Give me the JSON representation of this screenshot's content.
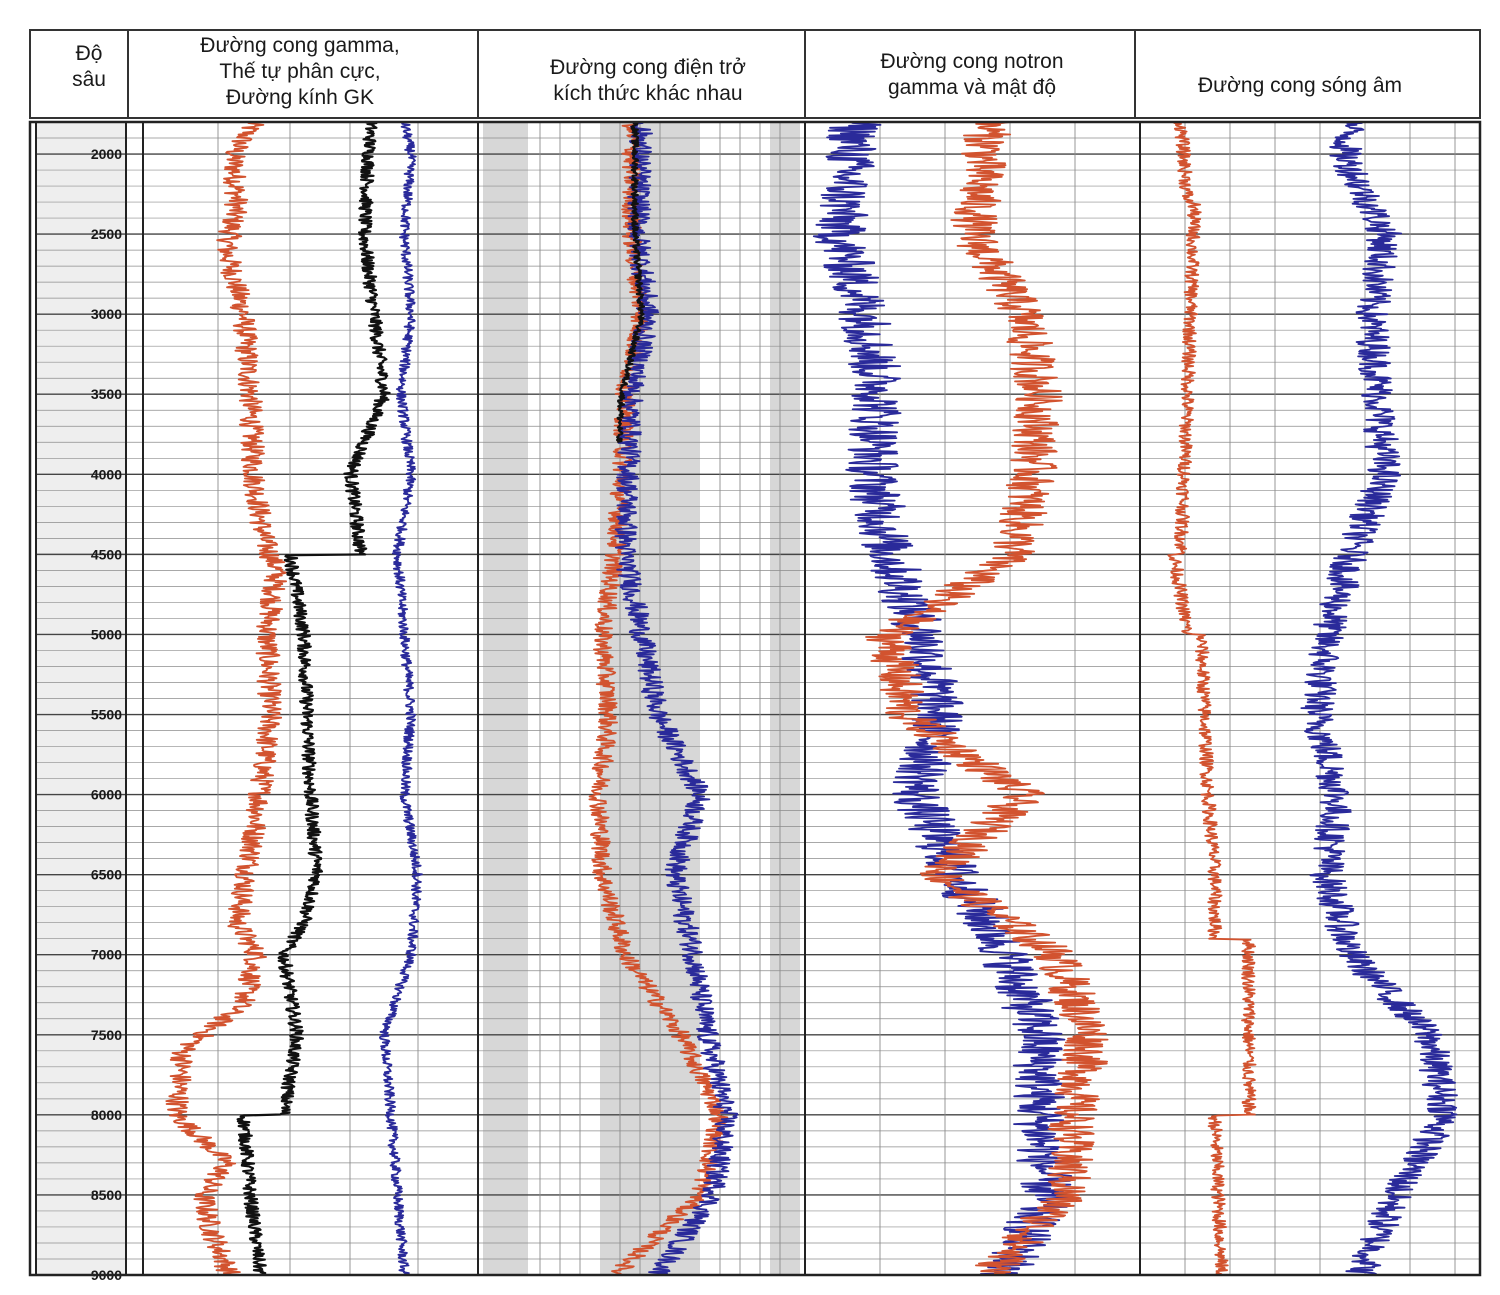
{
  "headers": {
    "depth_lines": [
      "Độ",
      "sâu"
    ],
    "track1_lines": [
      "Đường cong gamma,",
      "Thế tự phân cực,",
      "Đường kính GK"
    ],
    "track2_lines": [
      "Đường cong điện trở",
      "kích thức khác nhau"
    ],
    "track3_lines": [
      "Đường cong notron",
      "gamma và mật độ"
    ],
    "track4_lines": [
      "Đường cong sóng âm"
    ]
  },
  "colors": {
    "red_curve": "#d2532f",
    "blue_curve": "#2a2a9a",
    "black_curve": "#111111",
    "grid": "#8c8c8c",
    "depth_track_bg": "#eeeeee",
    "resist_band": "#c9c9c9"
  },
  "chart_data": {
    "type": "line",
    "depth_axis": {
      "range": [
        1800,
        9000
      ],
      "tick_labels": [
        "2000",
        "2500",
        "3000",
        "3500",
        "4000",
        "4500",
        "5000",
        "5500",
        "6000",
        "6500",
        "7000",
        "7500",
        "8000",
        "8500",
        "9000"
      ]
    },
    "tracks": [
      {
        "track": "gamma-sp-caliper",
        "curves": [
          {
            "color": "red",
            "depth": [
              1800,
              2000,
              2300,
              2600,
              3000,
              3500,
              4000,
              4400,
              4600,
              5000,
              5500,
              6000,
              6400,
              6800,
              7000,
              7300,
              7600,
              8000,
              8300,
              8500,
              8700,
              9000
            ],
            "value": [
              0.33,
              0.27,
              0.28,
              0.25,
              0.3,
              0.32,
              0.33,
              0.36,
              0.4,
              0.37,
              0.38,
              0.35,
              0.32,
              0.28,
              0.34,
              0.3,
              0.12,
              0.1,
              0.25,
              0.18,
              0.2,
              0.26
            ]
          },
          {
            "color": "black",
            "depth": [
              1800,
              2500,
              3000,
              3500,
              4000,
              4500,
              4501,
              5000,
              6000,
              6500,
              6800,
              7000,
              7500,
              8000,
              8001,
              8500,
              9000
            ],
            "value": [
              0.68,
              0.66,
              0.69,
              0.72,
              0.62,
              0.65,
              0.44,
              0.48,
              0.5,
              0.52,
              0.48,
              0.42,
              0.46,
              0.42,
              0.3,
              0.32,
              0.35
            ]
          },
          {
            "color": "blue",
            "depth": [
              1800,
              2000,
              2500,
              3000,
              3500,
              4000,
              4500,
              5000,
              5500,
              6000,
              6500,
              7000,
              7500,
              8000,
              8500,
              9000
            ],
            "value": [
              0.78,
              0.8,
              0.78,
              0.8,
              0.77,
              0.8,
              0.76,
              0.78,
              0.8,
              0.78,
              0.82,
              0.8,
              0.72,
              0.74,
              0.76,
              0.78
            ]
          }
        ]
      },
      {
        "track": "resistivity",
        "curves": [
          {
            "color": "red",
            "depth": [
              1800,
              2500,
              3000,
              3500,
              4000,
              4500,
              5000,
              5500,
              6000,
              6500,
              7000,
              7500,
              8000,
              8500,
              9000
            ],
            "value": [
              0.47,
              0.47,
              0.5,
              0.45,
              0.44,
              0.42,
              0.38,
              0.4,
              0.37,
              0.38,
              0.45,
              0.62,
              0.74,
              0.68,
              0.42
            ]
          },
          {
            "color": "blue",
            "depth": [
              1800,
              2500,
              3000,
              3500,
              4000,
              4500,
              5000,
              5500,
              6000,
              6500,
              7000,
              7500,
              8000,
              8500,
              9000
            ],
            "value": [
              0.5,
              0.49,
              0.52,
              0.47,
              0.46,
              0.45,
              0.5,
              0.55,
              0.68,
              0.6,
              0.66,
              0.7,
              0.76,
              0.72,
              0.55
            ]
          },
          {
            "color": "black",
            "depth": [
              1800,
              2500,
              3000,
              3500,
              3800
            ],
            "value": [
              0.48,
              0.48,
              0.5,
              0.44,
              0.43
            ]
          }
        ]
      },
      {
        "track": "neutron-gamma-density",
        "curves": [
          {
            "color": "blue",
            "depth": [
              1800,
              2500,
              3000,
              3500,
              4000,
              4500,
              5000,
              5500,
              6000,
              6500,
              7000,
              7500,
              8000,
              8500,
              9000
            ],
            "value": [
              0.15,
              0.1,
              0.18,
              0.22,
              0.2,
              0.25,
              0.35,
              0.4,
              0.33,
              0.45,
              0.6,
              0.7,
              0.7,
              0.72,
              0.6
            ]
          },
          {
            "color": "red",
            "depth": [
              1800,
              2500,
              3000,
              3500,
              4000,
              4500,
              5000,
              5500,
              6000,
              6500,
              7000,
              7500,
              8000,
              8500,
              9000
            ],
            "value": [
              0.55,
              0.5,
              0.65,
              0.7,
              0.68,
              0.62,
              0.25,
              0.3,
              0.65,
              0.4,
              0.75,
              0.85,
              0.8,
              0.78,
              0.55
            ]
          }
        ]
      },
      {
        "track": "sonic",
        "curves": [
          {
            "color": "red",
            "depth": [
              1800,
              2300,
              2301,
              3500,
              4500,
              4501,
              5000,
              5001,
              6000,
              6500,
              6900,
              6901,
              8000,
              8001,
              9000
            ],
            "value": [
              0.12,
              0.14,
              0.16,
              0.14,
              0.12,
              0.1,
              0.14,
              0.18,
              0.2,
              0.22,
              0.22,
              0.32,
              0.32,
              0.22,
              0.24
            ]
          },
          {
            "color": "blue",
            "depth": [
              1800,
              2000,
              2500,
              3000,
              3500,
              4000,
              4500,
              5000,
              5500,
              6000,
              6500,
              7000,
              7500,
              8000,
              8500,
              9000
            ],
            "value": [
              0.62,
              0.6,
              0.72,
              0.68,
              0.7,
              0.72,
              0.62,
              0.55,
              0.52,
              0.58,
              0.55,
              0.62,
              0.85,
              0.9,
              0.75,
              0.65
            ]
          }
        ]
      }
    ]
  }
}
